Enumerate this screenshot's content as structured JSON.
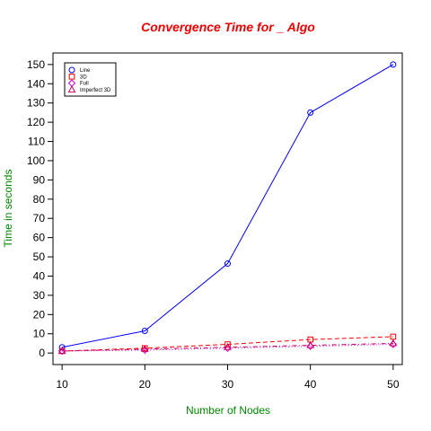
{
  "chart_data": {
    "type": "line",
    "title": "Convergence Time for _ Algo",
    "xlabel": "Number of Nodes",
    "ylabel": "Time in seconds",
    "x": [
      10,
      20,
      30,
      40,
      50
    ],
    "x_ticks": [
      "10",
      "20",
      "30",
      "40",
      "50"
    ],
    "y_ticks": [
      "0",
      "10",
      "20",
      "30",
      "40",
      "50",
      "60",
      "70",
      "80",
      "90",
      "100",
      "110",
      "120",
      "130",
      "140",
      "150"
    ],
    "xlim": [
      8.9,
      51.1
    ],
    "ylim": [
      -6,
      156
    ],
    "grid": false,
    "legend_position": "top-left",
    "series": [
      {
        "name": "Line",
        "values": [
          3,
          11.5,
          46.5,
          125,
          150
        ],
        "color": "#0000ff",
        "line_style": "solid",
        "marker": "circle"
      },
      {
        "name": "3D",
        "values": [
          1,
          2.5,
          4.5,
          7,
          8.5
        ],
        "color": "#ff0000",
        "line_style": "dashed",
        "marker": "square"
      },
      {
        "name": "Full",
        "values": [
          1,
          1.5,
          2.5,
          3.5,
          4.5
        ],
        "color": "#cc00cc",
        "line_style": "dotted",
        "marker": "diamond"
      },
      {
        "name": "Imperfect 3D",
        "values": [
          1,
          2,
          3,
          4,
          5
        ],
        "color": "#cc0066",
        "line_style": "dotdash",
        "marker": "triangle"
      }
    ],
    "colors": {
      "title": "#ee0000",
      "axis_title": "#008800",
      "frame": "#000000"
    }
  }
}
